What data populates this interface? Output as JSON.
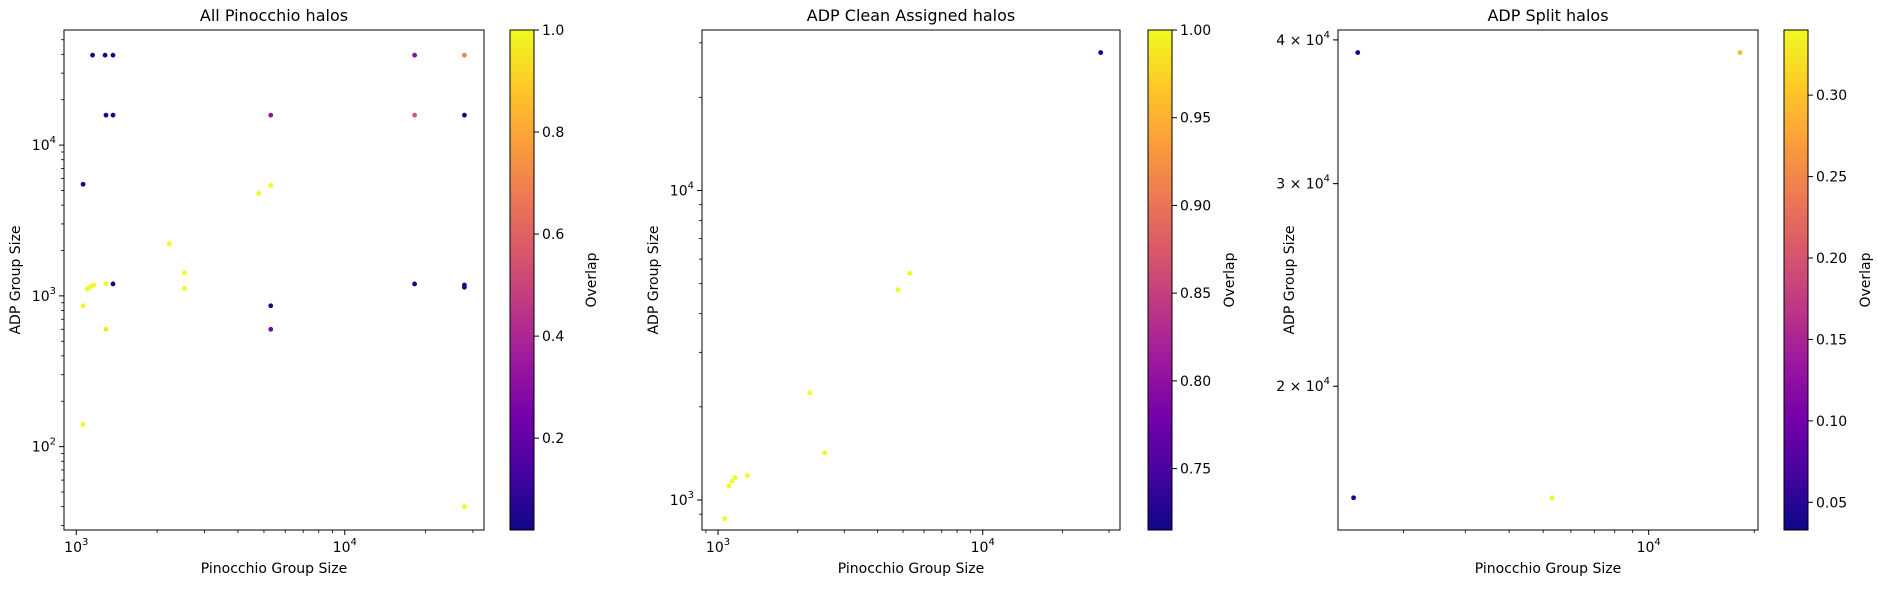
{
  "colormap": [
    "#0d0887",
    "#46039f",
    "#7201a8",
    "#9c179e",
    "#bd3786",
    "#d8576b",
    "#ed7953",
    "#fb9f3a",
    "#fdca26",
    "#f0f921"
  ],
  "chart_data": [
    {
      "type": "scatter",
      "title": "All Pinocchio halos",
      "xlabel": "Pinocchio Group Size",
      "ylabel": "ADP Group Size",
      "xscale": "log",
      "yscale": "log",
      "xlim": [
        900,
        33000
      ],
      "ylim": [
        28,
        58000
      ],
      "xticks": [
        {
          "v": 1000,
          "base": "10",
          "exp": "3"
        },
        {
          "v": 10000,
          "base": "10",
          "exp": "4"
        }
      ],
      "yticks": [
        {
          "v": 100,
          "base": "10",
          "exp": "2"
        },
        {
          "v": 1000,
          "base": "10",
          "exp": "3"
        },
        {
          "v": 10000,
          "base": "10",
          "exp": "4"
        }
      ],
      "colorbar": {
        "label": "Overlap",
        "min": 0.02,
        "max": 1.0,
        "ticks": [
          "0.2",
          "0.4",
          "0.6",
          "0.8",
          "1.0"
        ]
      },
      "points": [
        {
          "x": 1060,
          "y": 140,
          "c": 1.0
        },
        {
          "x": 1060,
          "y": 860,
          "c": 1.0
        },
        {
          "x": 1100,
          "y": 1110,
          "c": 1.0
        },
        {
          "x": 1130,
          "y": 1150,
          "c": 1.0
        },
        {
          "x": 1160,
          "y": 1180,
          "c": 1.0
        },
        {
          "x": 1290,
          "y": 1200,
          "c": 1.0
        },
        {
          "x": 1290,
          "y": 600,
          "c": 0.95
        },
        {
          "x": 1060,
          "y": 5500,
          "c": 0.03
        },
        {
          "x": 1150,
          "y": 39500,
          "c": 0.03
        },
        {
          "x": 1280,
          "y": 39500,
          "c": 0.03
        },
        {
          "x": 1370,
          "y": 39500,
          "c": 0.03
        },
        {
          "x": 1290,
          "y": 15800,
          "c": 0.03
        },
        {
          "x": 1370,
          "y": 15800,
          "c": 0.03
        },
        {
          "x": 1370,
          "y": 1200,
          "c": 0.03
        },
        {
          "x": 2220,
          "y": 2220,
          "c": 1.0
        },
        {
          "x": 2530,
          "y": 1420,
          "c": 1.0
        },
        {
          "x": 2530,
          "y": 1120,
          "c": 1.0
        },
        {
          "x": 4780,
          "y": 4780,
          "c": 1.0
        },
        {
          "x": 5300,
          "y": 5400,
          "c": 1.0
        },
        {
          "x": 5300,
          "y": 15800,
          "c": 0.33
        },
        {
          "x": 5300,
          "y": 860,
          "c": 0.03
        },
        {
          "x": 5300,
          "y": 600,
          "c": 0.25
        },
        {
          "x": 18200,
          "y": 39500,
          "c": 0.3
        },
        {
          "x": 18200,
          "y": 15800,
          "c": 0.55
        },
        {
          "x": 18200,
          "y": 1200,
          "c": 0.03
        },
        {
          "x": 27900,
          "y": 39500,
          "c": 0.7
        },
        {
          "x": 27900,
          "y": 15800,
          "c": 0.03
        },
        {
          "x": 27900,
          "y": 1180,
          "c": 0.03
        },
        {
          "x": 27900,
          "y": 1140,
          "c": 0.03
        },
        {
          "x": 27900,
          "y": 40,
          "c": 1.0
        }
      ]
    },
    {
      "type": "scatter",
      "title": "ADP Clean Assigned halos",
      "xlabel": "Pinocchio Group Size",
      "ylabel": "ADP Group Size",
      "xscale": "log",
      "yscale": "log",
      "xlim": [
        870,
        33000
      ],
      "ylim": [
        800,
        33000
      ],
      "xticks": [
        {
          "v": 1000,
          "base": "10",
          "exp": "3"
        },
        {
          "v": 10000,
          "base": "10",
          "exp": "4"
        }
      ],
      "yticks": [
        {
          "v": 1000,
          "base": "10",
          "exp": "3"
        },
        {
          "v": 10000,
          "base": "10",
          "exp": "4"
        }
      ],
      "colorbar": {
        "label": "Overlap",
        "min": 0.715,
        "max": 1.0,
        "ticks": [
          "0.75",
          "0.80",
          "0.85",
          "0.90",
          "0.95",
          "1.00"
        ]
      },
      "points": [
        {
          "x": 27900,
          "y": 27900,
          "c": 0.72
        },
        {
          "x": 5300,
          "y": 5400,
          "c": 1.0
        },
        {
          "x": 4780,
          "y": 4780,
          "c": 1.0
        },
        {
          "x": 2220,
          "y": 2220,
          "c": 1.0
        },
        {
          "x": 2530,
          "y": 1420,
          "c": 1.0
        },
        {
          "x": 1290,
          "y": 1200,
          "c": 1.0
        },
        {
          "x": 1160,
          "y": 1180,
          "c": 1.0
        },
        {
          "x": 1130,
          "y": 1150,
          "c": 1.0
        },
        {
          "x": 1100,
          "y": 1110,
          "c": 1.0
        },
        {
          "x": 1060,
          "y": 870,
          "c": 1.0
        }
      ]
    },
    {
      "type": "scatter",
      "title": "ADP Split halos",
      "xlabel": "Pinocchio Group Size",
      "ylabel": "ADP Group Size",
      "xscale": "log",
      "yscale": "log",
      "xlim": [
        1300,
        20500
      ],
      "ylim": [
        15000,
        40800
      ],
      "xticks": [
        {
          "v": 10000,
          "base": "10",
          "exp": "4"
        }
      ],
      "yticks": [
        {
          "v": 20000,
          "base": "2 × 10",
          "exp": "4"
        },
        {
          "v": 30000,
          "base": "3 × 10",
          "exp": "4"
        },
        {
          "v": 40000,
          "base": "4 × 10",
          "exp": "4"
        }
      ],
      "colorbar": {
        "label": "Overlap",
        "min": 0.033,
        "max": 0.34,
        "ticks": [
          "0.05",
          "0.10",
          "0.15",
          "0.20",
          "0.25",
          "0.30"
        ]
      },
      "points": [
        {
          "x": 1480,
          "y": 39000,
          "c": 0.033
        },
        {
          "x": 1440,
          "y": 16000,
          "c": 0.033
        },
        {
          "x": 5300,
          "y": 16000,
          "c": 0.34
        },
        {
          "x": 18200,
          "y": 39000,
          "c": 0.29
        }
      ]
    }
  ]
}
